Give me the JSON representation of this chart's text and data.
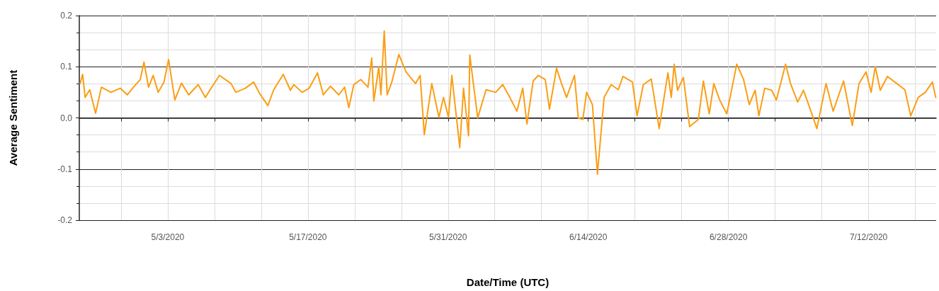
{
  "chart_data": {
    "type": "line",
    "xlabel": "Date/Time (UTC)",
    "ylabel": "Average Sentiment",
    "x": [
      "2020-04-24T06:00",
      "2020-04-24T12:00",
      "2020-04-24T18:00",
      "2020-04-25T05:00",
      "2020-04-25T19:00",
      "2020-04-26T09:00",
      "2020-04-27T08:00",
      "2020-04-28T06:00",
      "2020-04-28T23:00",
      "2020-04-29T16:00",
      "2020-04-30T06:00",
      "2020-04-30T15:00",
      "2020-05-01T02:00",
      "2020-05-01T13:00",
      "2020-05-02T01:00",
      "2020-05-02T15:00",
      "2020-05-03T02:00",
      "2020-05-03T17:00",
      "2020-05-04T09:00",
      "2020-05-05T02:00",
      "2020-05-06T01:00",
      "2020-05-06T18:00",
      "2020-05-07T11:00",
      "2020-05-08T04:00",
      "2020-05-09T08:00",
      "2020-05-09T19:00",
      "2020-05-10T18:00",
      "2020-05-11T14:00",
      "2020-05-12T04:00",
      "2020-05-13T00:00",
      "2020-05-13T14:00",
      "2020-05-14T13:00",
      "2020-05-15T06:00",
      "2020-05-15T14:00",
      "2020-05-16T10:00",
      "2020-05-17T03:00",
      "2020-05-17T23:00",
      "2020-05-18T13:00",
      "2020-05-19T06:00",
      "2020-05-20T02:00",
      "2020-05-20T16:00",
      "2020-05-21T02:00",
      "2020-05-21T14:00",
      "2020-05-22T07:00",
      "2020-05-23T00:00",
      "2020-05-23T09:00",
      "2020-05-23T14:00",
      "2020-05-24T02:00",
      "2020-05-24T07:00",
      "2020-05-24T15:00",
      "2020-05-24T22:00",
      "2020-05-25T09:00",
      "2020-05-26T02:00",
      "2020-05-26T19:00",
      "2020-05-27T18:00",
      "2020-05-28T05:00",
      "2020-05-28T15:00",
      "2020-05-29T09:00",
      "2020-05-30T02:00",
      "2020-05-30T13:00",
      "2020-05-31T01:00",
      "2020-05-31T09:00",
      "2020-06-01T04:00",
      "2020-06-01T13:00",
      "2020-06-02T01:00",
      "2020-06-02T04:00",
      "2020-06-02T23:00",
      "2020-06-03T19:00",
      "2020-06-04T18:00",
      "2020-06-05T11:00",
      "2020-06-06T04:00",
      "2020-06-06T21:00",
      "2020-06-07T11:00",
      "2020-06-07T21:00",
      "2020-06-08T12:00",
      "2020-06-09T00:00",
      "2020-06-09T17:00",
      "2020-06-10T03:00",
      "2020-06-10T20:00",
      "2020-06-11T08:00",
      "2020-06-11T20:00",
      "2020-06-12T15:00",
      "2020-06-13T00:00",
      "2020-06-13T11:00",
      "2020-06-13T20:00",
      "2020-06-14T10:00",
      "2020-06-14T22:00",
      "2020-06-15T14:00",
      "2020-06-16T07:00",
      "2020-06-17T00:00",
      "2020-06-17T11:00",
      "2020-06-18T10:00",
      "2020-06-18T21:00",
      "2020-06-19T12:00",
      "2020-06-20T07:00",
      "2020-06-21T02:00",
      "2020-06-21T23:00",
      "2020-06-22T07:00",
      "2020-06-22T14:00",
      "2020-06-22T22:00",
      "2020-06-23T12:00",
      "2020-06-24T03:00",
      "2020-06-25T00:00",
      "2020-06-25T12:00",
      "2020-06-26T02:00",
      "2020-06-26T13:00",
      "2020-06-27T03:00",
      "2020-06-27T20:00",
      "2020-06-28T20:00",
      "2020-06-29T12:00",
      "2020-06-30T02:00",
      "2020-06-30T16:00",
      "2020-07-01T01:00",
      "2020-07-01T15:00",
      "2020-07-02T08:00",
      "2020-07-02T19:00",
      "2020-07-03T17:00",
      "2020-07-04T05:00",
      "2020-07-04T22:00",
      "2020-07-05T12:00",
      "2020-07-06T02:00",
      "2020-07-06T20:00",
      "2020-07-07T18:00",
      "2020-07-08T11:00",
      "2020-07-09T12:00",
      "2020-07-10T09:00",
      "2020-07-11T01:00",
      "2020-07-11T18:00",
      "2020-07-12T06:00",
      "2020-07-12T16:00",
      "2020-07-13T04:00",
      "2020-07-13T21:00",
      "2020-07-14T20:00",
      "2020-07-15T15:00",
      "2020-07-16T05:00",
      "2020-07-16T23:00",
      "2020-07-17T16:00",
      "2020-07-18T09:00",
      "2020-07-18T17:00"
    ],
    "series": [
      {
        "color": "#fb9e14",
        "values": [
          0.067,
          0.085,
          0.04,
          0.055,
          0.009,
          0.06,
          0.05,
          0.058,
          0.045,
          0.062,
          0.075,
          0.109,
          0.06,
          0.083,
          0.05,
          0.07,
          0.114,
          0.035,
          0.068,
          0.045,
          0.065,
          0.04,
          0.062,
          0.083,
          0.067,
          0.05,
          0.058,
          0.07,
          0.048,
          0.024,
          0.055,
          0.085,
          0.054,
          0.065,
          0.05,
          0.058,
          0.088,
          0.045,
          0.062,
          0.045,
          0.06,
          0.02,
          0.065,
          0.075,
          0.06,
          0.117,
          0.033,
          0.1,
          0.045,
          0.17,
          0.045,
          0.07,
          0.124,
          0.09,
          0.067,
          0.083,
          -0.033,
          0.067,
          0.001,
          0.04,
          0.001,
          0.083,
          -0.058,
          0.058,
          -0.035,
          0.123,
          0.0,
          0.055,
          0.05,
          0.065,
          0.04,
          0.013,
          0.058,
          -0.012,
          0.072,
          0.083,
          0.075,
          0.017,
          0.097,
          0.067,
          0.04,
          0.083,
          0.0,
          -0.003,
          0.05,
          0.026,
          -0.11,
          0.04,
          0.065,
          0.055,
          0.081,
          0.07,
          0.004,
          0.065,
          0.076,
          -0.021,
          0.088,
          0.04,
          0.105,
          0.054,
          0.079,
          -0.017,
          -0.003,
          0.072,
          0.008,
          0.067,
          0.035,
          0.008,
          0.105,
          0.076,
          0.026,
          0.054,
          0.004,
          0.058,
          0.054,
          0.035,
          0.105,
          0.067,
          0.031,
          0.054,
          0.022,
          -0.021,
          0.067,
          0.013,
          0.072,
          -0.015,
          0.067,
          0.09,
          0.05,
          0.1,
          0.054,
          0.081,
          0.067,
          0.055,
          0.004,
          0.04,
          0.05,
          0.07,
          0.04
        ]
      }
    ],
    "xlim": [
      "2020-04-24T04:00",
      "2020-07-18T18:00"
    ],
    "xticks": [
      {
        "value": "2020-04-28T08:00",
        "label": null
      },
      {
        "value": "2020-05-03T00:00",
        "label": "5/3/2020"
      },
      {
        "value": "2020-05-07T16:00",
        "label": null
      },
      {
        "value": "2020-05-12T08:00",
        "label": null
      },
      {
        "value": "2020-05-17T00:00",
        "label": "5/17/2020"
      },
      {
        "value": "2020-05-21T16:00",
        "label": null
      },
      {
        "value": "2020-05-26T08:00",
        "label": null
      },
      {
        "value": "2020-05-31T00:00",
        "label": "5/31/2020"
      },
      {
        "value": "2020-06-04T16:00",
        "label": null
      },
      {
        "value": "2020-06-09T08:00",
        "label": null
      },
      {
        "value": "2020-06-14T00:00",
        "label": "6/14/2020"
      },
      {
        "value": "2020-06-18T16:00",
        "label": null
      },
      {
        "value": "2020-06-23T08:00",
        "label": null
      },
      {
        "value": "2020-06-28T00:00",
        "label": "6/28/2020"
      },
      {
        "value": "2020-07-02T16:00",
        "label": null
      },
      {
        "value": "2020-07-07T08:00",
        "label": null
      },
      {
        "value": "2020-07-12T00:00",
        "label": "7/12/2020"
      },
      {
        "value": "2020-07-16T16:00",
        "label": null
      }
    ],
    "ylim": [
      -0.2,
      0.2
    ],
    "yticks": [
      -0.2,
      -0.1,
      {
        "value": 0,
        "label": "0.0"
      },
      0.1,
      0.2
    ],
    "grid": true,
    "marker": "none",
    "line_style": "solid"
  }
}
